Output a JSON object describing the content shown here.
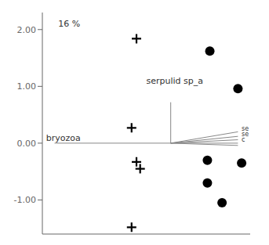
{
  "chart_data": {
    "type": "scatter",
    "xlim": [
      -0.55,
      1.15
    ],
    "ylim": [
      -1.6,
      2.3
    ],
    "yticks": [
      {
        "value": -1.0,
        "label": "-1.00"
      },
      {
        "value": 0.0,
        "label": "0.00"
      },
      {
        "value": 1.0,
        "label": "1.00"
      },
      {
        "value": 2.0,
        "label": "2.00"
      }
    ],
    "tick_labels": "y",
    "grid": false,
    "series": [
      {
        "type": "line",
        "color": "#888888",
        "x": [
          0.5,
          0.5
        ],
        "values": [
          0.0,
          0.72
        ]
      },
      {
        "type": "line",
        "color": "#888888",
        "x": [
          -0.45,
          1.05
        ],
        "values": [
          0.0,
          0.0
        ]
      },
      {
        "type": "line",
        "color": "#888888",
        "x": [
          0.5,
          1.05
        ],
        "values": [
          0.0,
          0.2
        ]
      },
      {
        "type": "line",
        "color": "#888888",
        "x": [
          0.5,
          1.05
        ],
        "values": [
          0.0,
          0.12
        ]
      },
      {
        "type": "line",
        "color": "#888888",
        "x": [
          0.5,
          1.05
        ],
        "values": [
          0.0,
          0.06
        ]
      },
      {
        "type": "line",
        "color": "#888888",
        "x": [
          0.5,
          1.05
        ],
        "values": [
          0.0,
          -0.04
        ]
      },
      {
        "type": "scatter",
        "marker": "circle",
        "color": "#000000",
        "x": [
          0.82,
          1.05,
          0.8,
          1.08,
          0.8,
          0.92
        ],
        "values": [
          1.62,
          0.96,
          -0.3,
          -0.35,
          -0.7,
          -1.05
        ]
      },
      {
        "type": "scatter",
        "marker": "cross",
        "color": "#000000",
        "x": [
          0.22,
          0.18,
          0.22,
          0.25,
          0.18
        ],
        "values": [
          1.84,
          0.27,
          -0.33,
          -0.45,
          -1.48
        ]
      }
    ],
    "annotations": [
      {
        "text": "serpulid sp_a",
        "x": 0.3,
        "y": 1.05
      },
      {
        "text": "bryozoa",
        "x": -0.52,
        "y": 0.04
      },
      {
        "text": "se",
        "x": 1.08,
        "y": 0.22
      },
      {
        "text": "se",
        "x": 1.08,
        "y": 0.12
      },
      {
        "text": "c",
        "x": 1.08,
        "y": 0.02
      },
      {
        "text": "16 %",
        "x": -0.42,
        "y": 2.05
      }
    ]
  }
}
